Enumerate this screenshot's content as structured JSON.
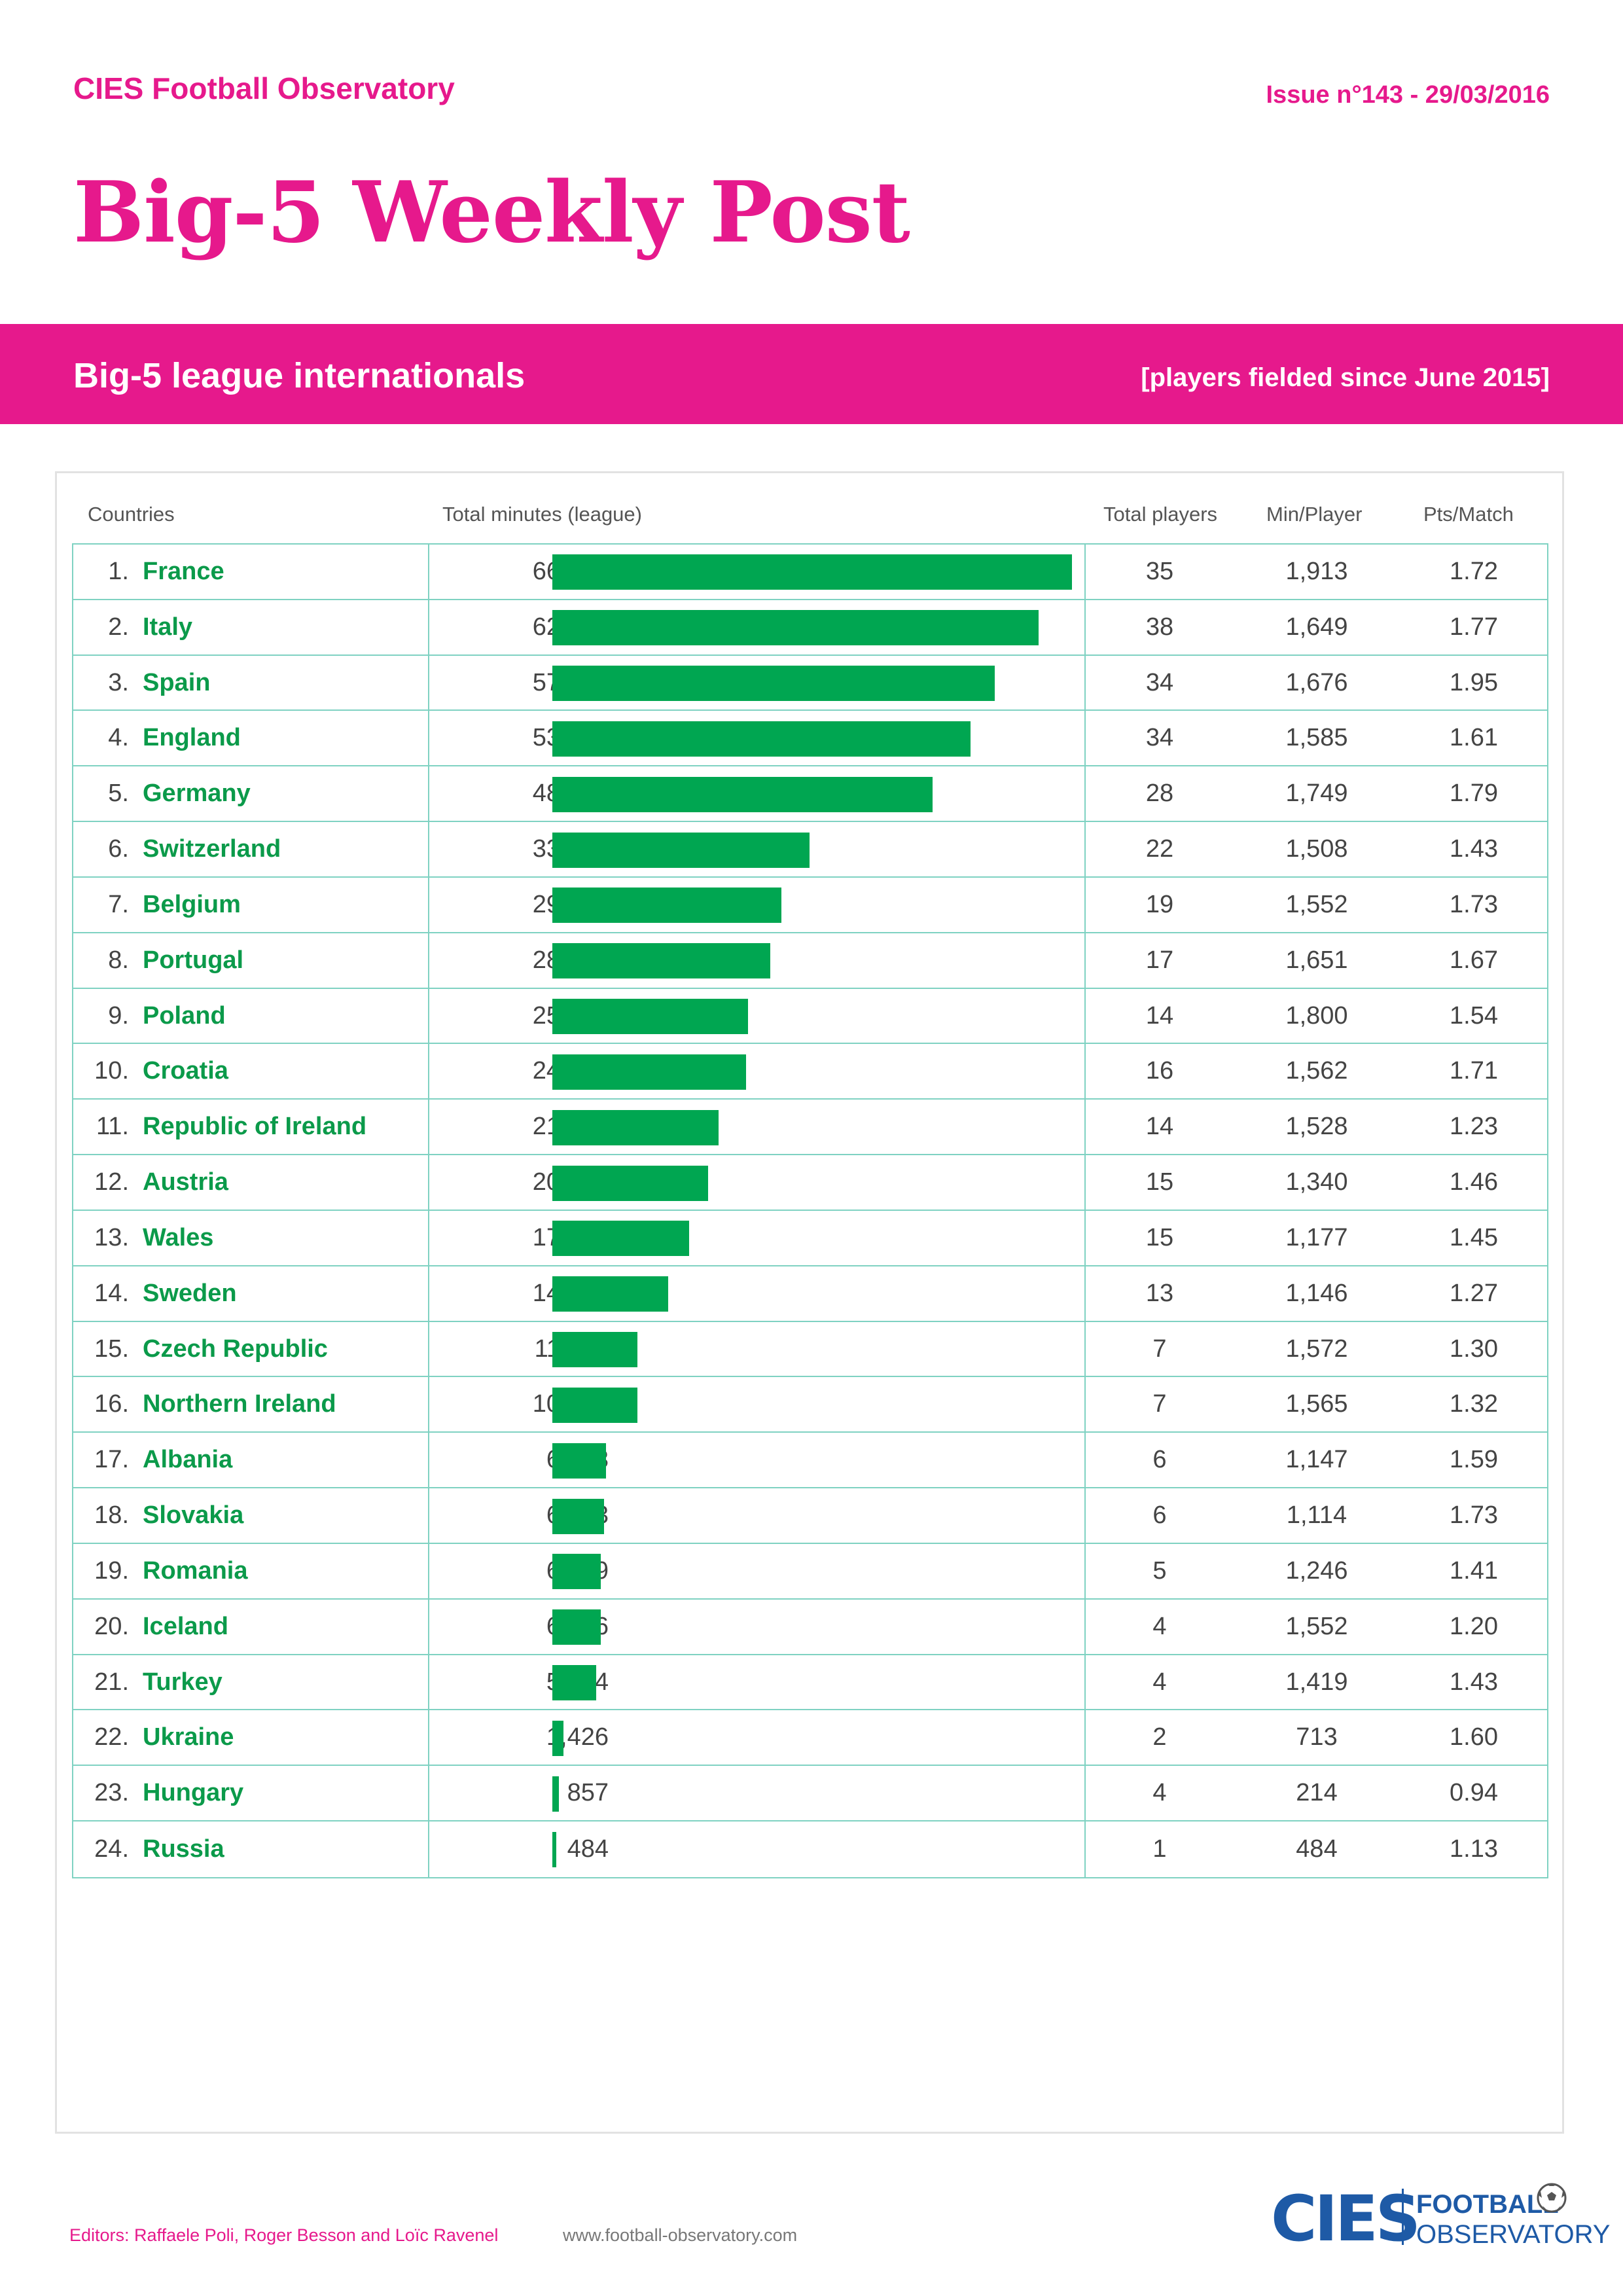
{
  "header": {
    "org": "CIES Football Observatory",
    "issue": "Issue n°143 - 29/03/2016",
    "title": "Big-5 Weekly Post"
  },
  "band": {
    "title": "Big-5 league internationals",
    "subtitle": "[players fielded since June 2015]"
  },
  "columns": {
    "countries": "Countries",
    "minutes": "Total minutes (league)",
    "players": "Total players",
    "min_player": "Min/Player",
    "pts_match": "Pts/Match"
  },
  "chart_data": {
    "type": "bar",
    "title": "Big-5 league internationals",
    "series": [
      {
        "name": "Total minutes (league)"
      }
    ],
    "rows": [
      {
        "rank": "1.",
        "country": "France",
        "minutes": 66961,
        "minutes_label": "66,961",
        "players": "35",
        "min_player": "1,913",
        "pts_match": "1.72"
      },
      {
        "rank": "2.",
        "country": "Italy",
        "minutes": 62670,
        "minutes_label": "62,670",
        "players": "38",
        "min_player": "1,649",
        "pts_match": "1.77"
      },
      {
        "rank": "3.",
        "country": "Spain",
        "minutes": 57000,
        "minutes_label": "57,000",
        "players": "34",
        "min_player": "1,676",
        "pts_match": "1.95"
      },
      {
        "rank": "4.",
        "country": "England",
        "minutes": 53892,
        "minutes_label": "53,892",
        "players": "34",
        "min_player": "1,585",
        "pts_match": "1.61"
      },
      {
        "rank": "5.",
        "country": "Germany",
        "minutes": 48969,
        "minutes_label": "48,969",
        "players": "28",
        "min_player": "1,749",
        "pts_match": "1.79"
      },
      {
        "rank": "6.",
        "country": "Switzerland",
        "minutes": 33166,
        "minutes_label": "33,166",
        "players": "22",
        "min_player": "1,508",
        "pts_match": "1.43"
      },
      {
        "rank": "7.",
        "country": "Belgium",
        "minutes": 29483,
        "minutes_label": "29,483",
        "players": "19",
        "min_player": "1,552",
        "pts_match": "1.73"
      },
      {
        "rank": "8.",
        "country": "Portugal",
        "minutes": 28059,
        "minutes_label": "28,059",
        "players": "17",
        "min_player": "1,651",
        "pts_match": "1.67"
      },
      {
        "rank": "9.",
        "country": "Poland",
        "minutes": 25199,
        "minutes_label": "25,199",
        "players": "14",
        "min_player": "1,800",
        "pts_match": "1.54"
      },
      {
        "rank": "10.",
        "country": "Croatia",
        "minutes": 24994,
        "minutes_label": "24,994",
        "players": "16",
        "min_player": "1,562",
        "pts_match": "1.71"
      },
      {
        "rank": "11.",
        "country": "Republic of Ireland",
        "minutes": 21394,
        "minutes_label": "21,394",
        "players": "14",
        "min_player": "1,528",
        "pts_match": "1.23"
      },
      {
        "rank": "12.",
        "country": "Austria",
        "minutes": 20094,
        "minutes_label": "20,094",
        "players": "15",
        "min_player": "1,340",
        "pts_match": "1.46"
      },
      {
        "rank": "13.",
        "country": "Wales",
        "minutes": 17660,
        "minutes_label": "17,660",
        "players": "15",
        "min_player": "1,177",
        "pts_match": "1.45"
      },
      {
        "rank": "14.",
        "country": "Sweden",
        "minutes": 14899,
        "minutes_label": "14,899",
        "players": "13",
        "min_player": "1,146",
        "pts_match": "1.27"
      },
      {
        "rank": "15.",
        "country": "Czech Republic",
        "minutes": 11003,
        "minutes_label": "11,003",
        "players": "7",
        "min_player": "1,572",
        "pts_match": "1.30"
      },
      {
        "rank": "16.",
        "country": "Northern Ireland",
        "minutes": 10954,
        "minutes_label": "10,954",
        "players": "7",
        "min_player": "1,565",
        "pts_match": "1.32"
      },
      {
        "rank": "17.",
        "country": "Albania",
        "minutes": 6883,
        "minutes_label": "6,883",
        "players": "6",
        "min_player": "1,147",
        "pts_match": "1.59"
      },
      {
        "rank": "18.",
        "country": "Slovakia",
        "minutes": 6683,
        "minutes_label": "6,683",
        "players": "6",
        "min_player": "1,114",
        "pts_match": "1.73"
      },
      {
        "rank": "19.",
        "country": "Romania",
        "minutes": 6229,
        "minutes_label": "6,229",
        "players": "5",
        "min_player": "1,246",
        "pts_match": "1.41"
      },
      {
        "rank": "20.",
        "country": "Iceland",
        "minutes": 6206,
        "minutes_label": "6,206",
        "players": "4",
        "min_player": "1,552",
        "pts_match": "1.20"
      },
      {
        "rank": "21.",
        "country": "Turkey",
        "minutes": 5674,
        "minutes_label": "5,674",
        "players": "4",
        "min_player": "1,419",
        "pts_match": "1.43"
      },
      {
        "rank": "22.",
        "country": "Ukraine",
        "minutes": 1426,
        "minutes_label": "1,426",
        "players": "2",
        "min_player": "713",
        "pts_match": "1.60"
      },
      {
        "rank": "23.",
        "country": "Hungary",
        "minutes": 857,
        "minutes_label": "857",
        "players": "4",
        "min_player": "214",
        "pts_match": "0.94"
      },
      {
        "rank": "24.",
        "country": "Russia",
        "minutes": 484,
        "minutes_label": "484",
        "players": "1",
        "min_player": "484",
        "pts_match": "1.13"
      }
    ],
    "bar_color": "#00a651"
  },
  "footer": {
    "editors": "Editors: Raffaele Poli, Roger Besson and Loïc Ravenel",
    "website": "www.football-observatory.com"
  },
  "logo": {
    "cies": "CIES",
    "football": "FOOTBALL",
    "observatory": "OBSERVATORY"
  },
  "colors": {
    "brand": "#e6198c",
    "country_text": "#0b9a4a",
    "grid": "#7fd2c2",
    "logo": "#1e5aa6"
  }
}
